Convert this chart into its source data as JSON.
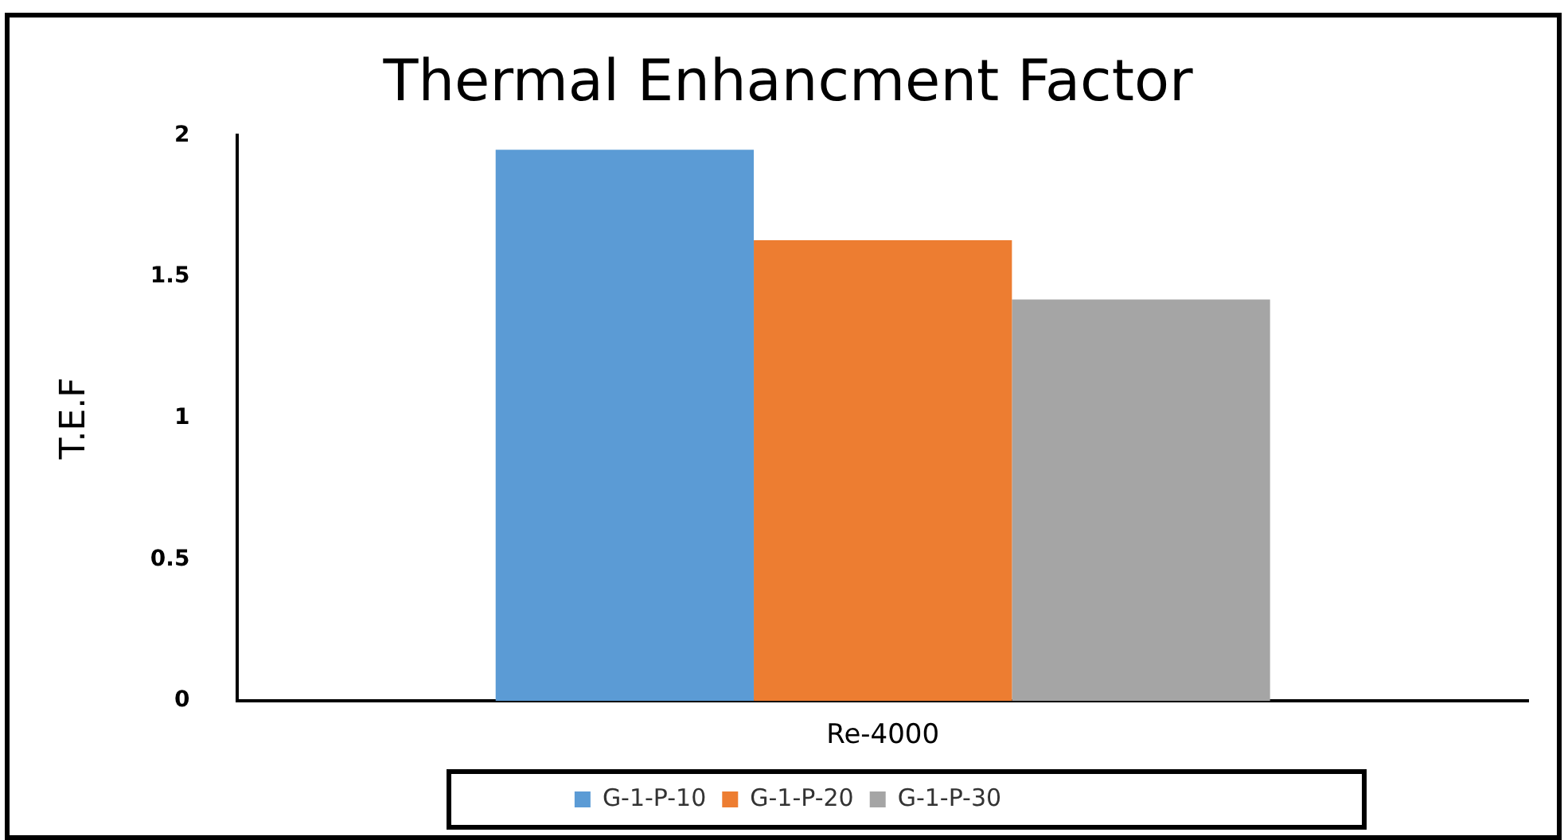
{
  "chart_data": {
    "type": "bar",
    "title": "Thermal Enhancment Factor",
    "ylabel": "T.E.F",
    "categories": [
      "Re-4000"
    ],
    "series": [
      {
        "name": "G-1-P-10",
        "color": "#5b9bd5",
        "values": [
          1.95
        ]
      },
      {
        "name": "G-1-P-20",
        "color": "#ed7d31",
        "values": [
          1.63
        ]
      },
      {
        "name": "G-1-P-30",
        "color": "#a5a5a5",
        "values": [
          1.42
        ]
      }
    ],
    "ylim": [
      0,
      2
    ],
    "yticks": [
      0,
      0.5,
      1,
      1.5,
      2
    ],
    "grid": false,
    "legend": "bottom"
  }
}
